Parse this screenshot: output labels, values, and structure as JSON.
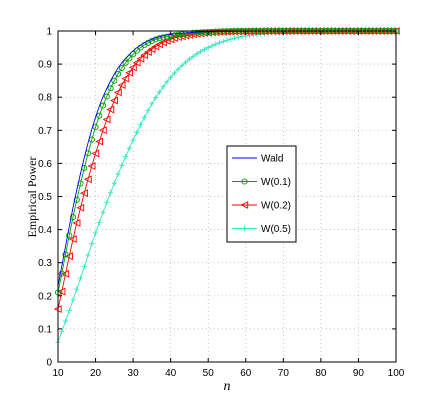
{
  "chart_data": {
    "type": "line",
    "title": "",
    "xlabel": "n",
    "ylabel": "Empirical Power",
    "xlim": [
      10,
      100
    ],
    "ylim": [
      0,
      1
    ],
    "xticks": [
      10,
      20,
      30,
      40,
      50,
      60,
      70,
      80,
      90,
      100
    ],
    "yticks": [
      0,
      0.1,
      0.2,
      0.3,
      0.4,
      0.5,
      0.6,
      0.7,
      0.8,
      0.9,
      1
    ],
    "grid": true,
    "legend_position": "right",
    "x": [
      10,
      15,
      20,
      25,
      30,
      35,
      40,
      45,
      50,
      55,
      60,
      70,
      80,
      90,
      100
    ],
    "series": [
      {
        "name": "Wald",
        "color": "#0000ff",
        "marker": "none",
        "values": [
          0.23,
          0.52,
          0.74,
          0.87,
          0.94,
          0.975,
          0.99,
          0.995,
          0.998,
          0.999,
          1.0,
          1.0,
          1.0,
          1.0,
          1.0
        ]
      },
      {
        "name": "W(0.1)",
        "color": "#00a000",
        "marker": "circle",
        "values": [
          0.21,
          0.49,
          0.71,
          0.85,
          0.93,
          0.97,
          0.985,
          0.993,
          0.997,
          0.999,
          1.0,
          1.0,
          1.0,
          1.0,
          1.0
        ]
      },
      {
        "name": "W(0.2)",
        "color": "#ff0000",
        "marker": "triangle-left",
        "values": [
          0.16,
          0.42,
          0.63,
          0.79,
          0.89,
          0.945,
          0.975,
          0.988,
          0.995,
          0.998,
          0.999,
          1.0,
          1.0,
          1.0,
          1.0
        ]
      },
      {
        "name": "W(0.5)",
        "color": "#33e6c0",
        "marker": "plus",
        "values": [
          0.06,
          0.22,
          0.39,
          0.54,
          0.67,
          0.78,
          0.86,
          0.915,
          0.95,
          0.972,
          0.985,
          0.995,
          0.999,
          1.0,
          1.0
        ]
      }
    ]
  }
}
